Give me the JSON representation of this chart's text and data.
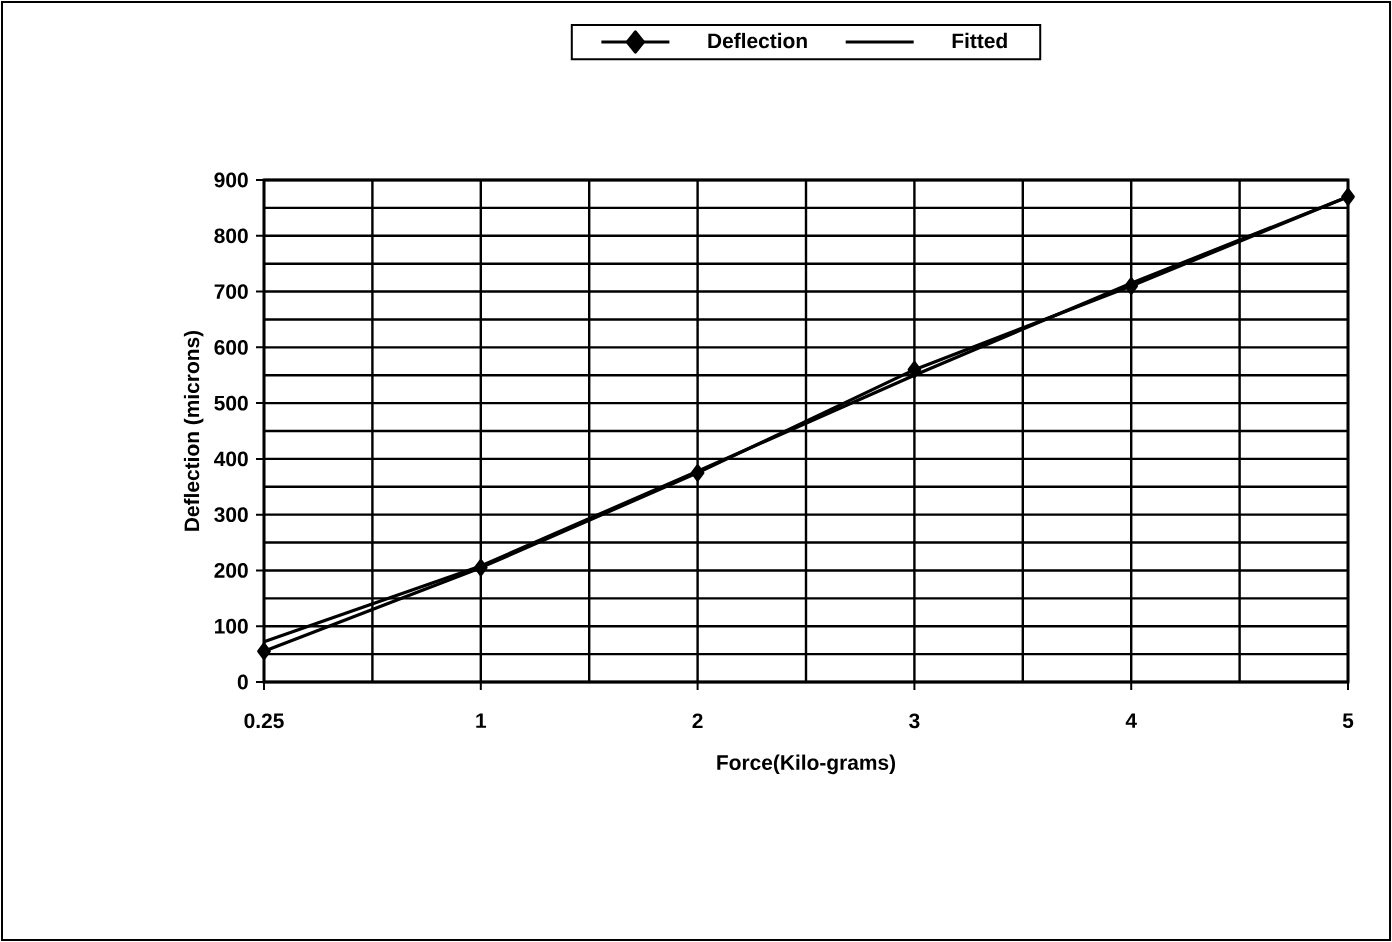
{
  "chart_data": {
    "type": "line",
    "xlabel": "Force(Kilo-grams)",
    "ylabel": "Deflection (microns)",
    "categories": [
      "0.25",
      "1",
      "2",
      "3",
      "4",
      "5"
    ],
    "series": [
      {
        "name": "Deflection",
        "color": "#000000",
        "marker": "diamond",
        "values": [
          55,
          205,
          375,
          560,
          710,
          870
        ]
      },
      {
        "name": "Fitted",
        "color": "#000000",
        "marker": "none",
        "values": [
          72,
          208,
          378,
          550,
          715,
          870
        ]
      }
    ],
    "ylim": [
      0,
      900
    ],
    "yticks": [
      0,
      100,
      200,
      300,
      400,
      500,
      600,
      700,
      800,
      900
    ],
    "grid": true,
    "legend": "top"
  }
}
